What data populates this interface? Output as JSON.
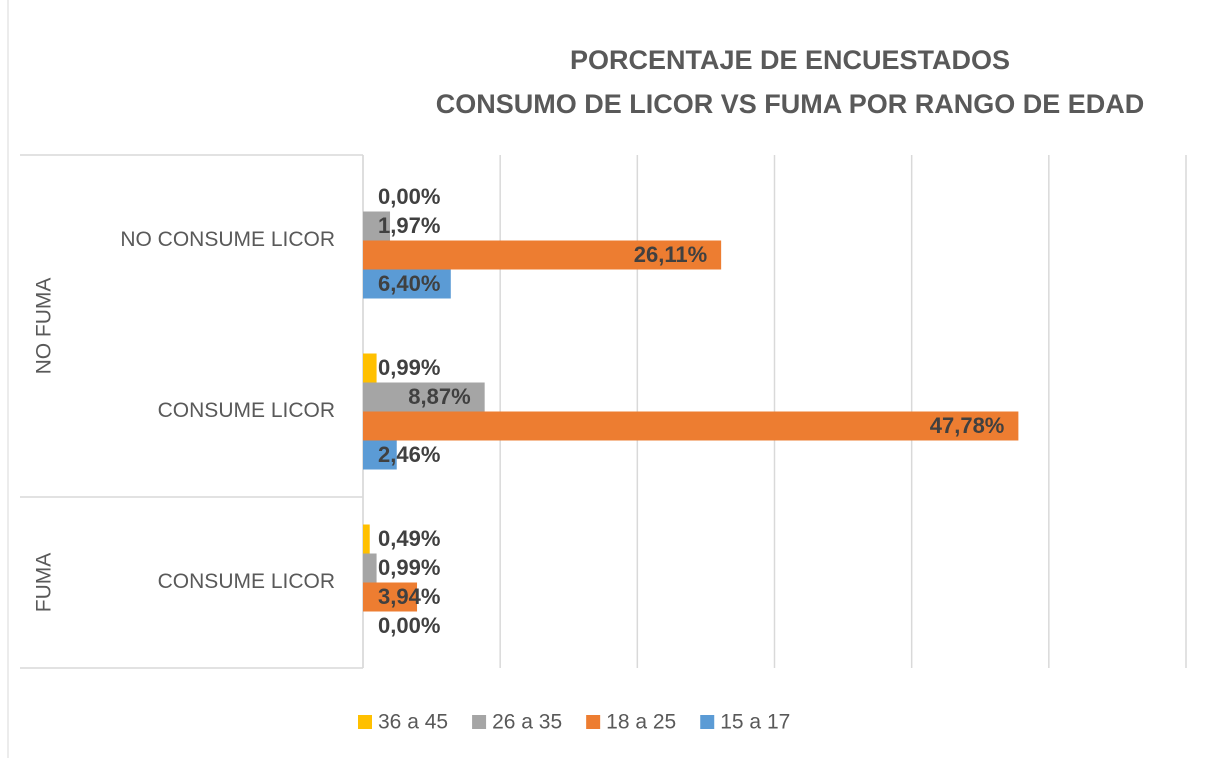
{
  "chart_data": {
    "type": "barh",
    "title": "PORCENTAJE DE ENCUESTADOS",
    "subtitle": "CONSUMO DE LICOR VS FUMA POR RANGO DE EDAD",
    "categories": [
      "NO CONSUME LICOR",
      "CONSUME LICOR",
      "CONSUME LICOR"
    ],
    "category_groups": [
      "NO FUMA",
      "NO FUMA",
      "FUMA"
    ],
    "series": [
      {
        "name": "36 a 45",
        "color": "#ffc000",
        "values": [
          0,
          0.99,
          0.49
        ],
        "value_labels": [
          "0,00%",
          "0,99%",
          "0,49%"
        ]
      },
      {
        "name": "26 a 35",
        "color": "#a5a5a5",
        "values": [
          1.97,
          8.87,
          0.99
        ],
        "value_labels": [
          "1,97%",
          "8,87%",
          "0,99%"
        ]
      },
      {
        "name": "18 a 25",
        "color": "#ed7d31",
        "values": [
          26.11,
          47.78,
          3.94
        ],
        "value_labels": [
          "26,11%",
          "47,78%",
          "3,94%"
        ]
      },
      {
        "name": "15 a 17",
        "color": "#5b9bd5",
        "values": [
          6.4,
          2.46,
          0
        ],
        "value_labels": [
          "6,40%",
          "2,46%",
          "0,00%"
        ]
      }
    ],
    "xlim": [
      0,
      60
    ],
    "xticks": [
      0,
      10,
      20,
      30,
      40,
      50,
      60
    ],
    "grid": true
  }
}
